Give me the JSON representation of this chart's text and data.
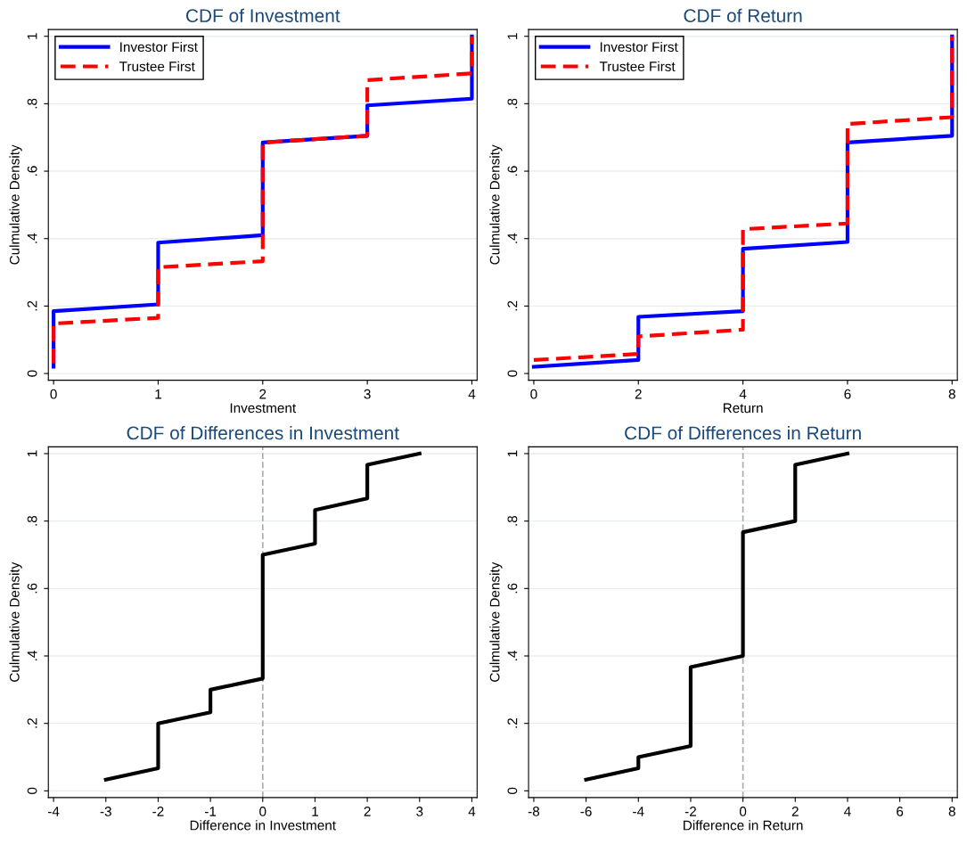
{
  "chart_data": [
    {
      "type": "line",
      "title": "CDF of Investment",
      "xlabel": "Investment",
      "ylabel": "Culmulative Density",
      "xlim": [
        -0.05,
        4.05
      ],
      "ylim": [
        -0.02,
        1.02
      ],
      "xticks": [
        0,
        1,
        2,
        3,
        4
      ],
      "yticks": [
        {
          "value": 0,
          "label": "0"
        },
        {
          "value": 0.2,
          "label": ".2"
        },
        {
          "value": 0.4,
          "label": ".4"
        },
        {
          "value": 0.6,
          "label": ".6"
        },
        {
          "value": 0.8,
          "label": ".8"
        },
        {
          "value": 1,
          "label": "1"
        }
      ],
      "grid": "y",
      "legend": "top left",
      "series": [
        {
          "name": "Investor First",
          "color": "#0000ff",
          "line_style": "solid",
          "x": [
            0,
            0,
            1,
            1,
            2,
            2,
            3,
            3,
            4,
            4
          ],
          "values": [
            0.02,
            0.185,
            0.205,
            0.388,
            0.41,
            0.685,
            0.705,
            0.795,
            0.815,
            1
          ]
        },
        {
          "name": "Trustee First",
          "color": "#ff0000",
          "line_style": "dashed",
          "x": [
            0,
            0,
            1,
            1,
            2,
            2,
            3,
            3,
            4,
            4
          ],
          "values": [
            0.03,
            0.148,
            0.165,
            0.315,
            0.333,
            0.685,
            0.705,
            0.87,
            0.89,
            1
          ]
        }
      ]
    },
    {
      "type": "line",
      "title": "CDF of Return",
      "xlabel": "Return",
      "ylabel": "Culmulative Density",
      "xlim": [
        -0.1,
        8.1
      ],
      "ylim": [
        -0.02,
        1.02
      ],
      "xticks": [
        0,
        2,
        4,
        6,
        8
      ],
      "yticks": [
        {
          "value": 0,
          "label": "0"
        },
        {
          "value": 0.2,
          "label": ".2"
        },
        {
          "value": 0.4,
          "label": ".4"
        },
        {
          "value": 0.6,
          "label": ".6"
        },
        {
          "value": 0.8,
          "label": ".8"
        },
        {
          "value": 1,
          "label": "1"
        }
      ],
      "grid": "y",
      "legend": "top left",
      "series": [
        {
          "name": "Investor First",
          "color": "#0000ff",
          "line_style": "solid",
          "x": [
            0,
            2,
            2,
            4,
            4,
            6,
            6,
            8,
            8
          ],
          "values": [
            0.02,
            0.04,
            0.168,
            0.185,
            0.37,
            0.39,
            0.685,
            0.705,
            1
          ]
        },
        {
          "name": "Trustee First",
          "color": "#ff0000",
          "line_style": "dashed",
          "x": [
            0,
            2,
            2,
            4,
            4,
            6,
            6,
            8,
            8
          ],
          "values": [
            0.04,
            0.058,
            0.11,
            0.13,
            0.428,
            0.445,
            0.74,
            0.76,
            1
          ]
        }
      ]
    },
    {
      "type": "line",
      "title": "CDF of Differences in Investment",
      "xlabel": "Difference in Investment",
      "ylabel": "Culmulative Density",
      "xlim": [
        -4.1,
        4.1
      ],
      "ylim": [
        -0.02,
        1.02
      ],
      "xticks": [
        -4,
        -3,
        -2,
        -1,
        0,
        1,
        2,
        3,
        4
      ],
      "yticks": [
        {
          "value": 0,
          "label": "0"
        },
        {
          "value": 0.2,
          "label": ".2"
        },
        {
          "value": 0.4,
          "label": ".4"
        },
        {
          "value": 0.6,
          "label": ".6"
        },
        {
          "value": 0.8,
          "label": ".8"
        },
        {
          "value": 1,
          "label": "1"
        }
      ],
      "grid": "y",
      "ref_lines": [
        {
          "axis": "x",
          "value": 0,
          "color": "#aaaaaa",
          "line_style": "dashed"
        }
      ],
      "series": [
        {
          "color": "#000000",
          "line_style": "solid",
          "x": [
            -3,
            -2,
            -2,
            -1,
            -1,
            0,
            0,
            1,
            1,
            2,
            2,
            3
          ],
          "values": [
            0.033,
            0.067,
            0.2,
            0.233,
            0.3,
            0.333,
            0.7,
            0.733,
            0.833,
            0.867,
            0.967,
            1
          ]
        }
      ]
    },
    {
      "type": "line",
      "title": "CDF of Differences in Return",
      "xlabel": "Difference in Return",
      "ylabel": "Culmulative Density",
      "xlim": [
        -8.2,
        8.2
      ],
      "ylim": [
        -0.02,
        1.02
      ],
      "xticks": [
        -8,
        -6,
        -4,
        -2,
        0,
        2,
        4,
        6,
        8
      ],
      "yticks": [
        {
          "value": 0,
          "label": "0"
        },
        {
          "value": 0.2,
          "label": ".2"
        },
        {
          "value": 0.4,
          "label": ".4"
        },
        {
          "value": 0.6,
          "label": ".6"
        },
        {
          "value": 0.8,
          "label": ".8"
        },
        {
          "value": 1,
          "label": "1"
        }
      ],
      "grid": "y",
      "ref_lines": [
        {
          "axis": "x",
          "value": 0,
          "color": "#aaaaaa",
          "line_style": "dashed"
        }
      ],
      "series": [
        {
          "color": "#000000",
          "line_style": "solid",
          "x": [
            -6,
            -4,
            -4,
            -2,
            -2,
            0,
            0,
            2,
            2,
            4
          ],
          "values": [
            0.033,
            0.067,
            0.1,
            0.133,
            0.367,
            0.4,
            0.767,
            0.8,
            0.967,
            1
          ]
        }
      ]
    }
  ]
}
